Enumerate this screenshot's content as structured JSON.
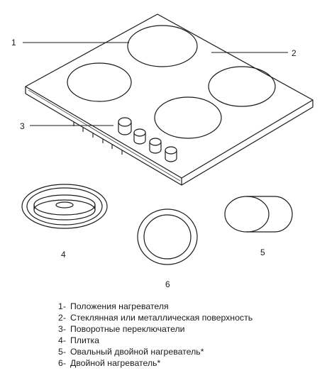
{
  "callouts": {
    "c1": "1",
    "c2": "2",
    "c3": "3",
    "c4": "4",
    "c5": "5",
    "c6": "6"
  },
  "legend": [
    {
      "num": "1-",
      "text": "Положения нагревателя"
    },
    {
      "num": "2-",
      "text": "Стеклянная или металлическая  поверхность"
    },
    {
      "num": "3-",
      "text": "Поворотные переключатели"
    },
    {
      "num": "4-",
      "text": "Плитка"
    },
    {
      "num": "5-",
      "text": "Овальный двойной нагреватель*"
    },
    {
      "num": "6-",
      "text": "Двойной нагреватель*"
    }
  ]
}
